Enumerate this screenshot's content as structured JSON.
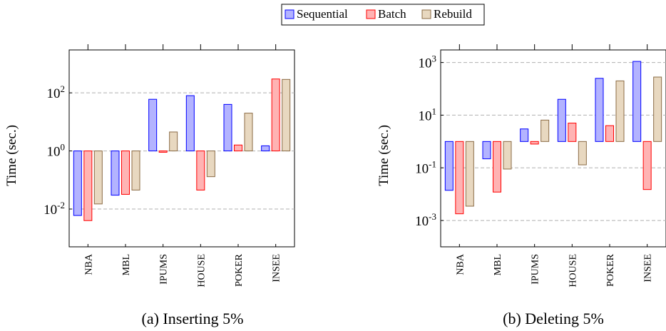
{
  "legend": {
    "items": [
      {
        "label": "Sequential",
        "fill": "#b3b3ff",
        "stroke": "#0000ff"
      },
      {
        "label": "Batch",
        "fill": "#ffb3b3",
        "stroke": "#ff0000"
      },
      {
        "label": "Rebuild",
        "fill": "#e8d8c0",
        "stroke": "#8b6b45"
      }
    ]
  },
  "chart_data": [
    {
      "type": "bar",
      "title": "",
      "caption": "(a) Inserting 5%",
      "ylabel": "Time (sec.)",
      "yscale": "log",
      "bar_base": 1,
      "ylim": [
        0.0005,
        3000
      ],
      "yticks": [
        0.01,
        1,
        100
      ],
      "ytick_labels": [
        "10^-2",
        "10^0",
        "10^2"
      ],
      "grid": "horizontal dashed at major ticks",
      "categories": [
        "NBA",
        "MBL",
        "IPUMS",
        "HOUSE",
        "POKER",
        "INSEE"
      ],
      "series": [
        {
          "name": "Sequential",
          "values": [
            0.006,
            0.03,
            60,
            80,
            40,
            1.5
          ]
        },
        {
          "name": "Batch",
          "values": [
            0.004,
            0.032,
            0.9,
            0.045,
            1.6,
            300
          ]
        },
        {
          "name": "Rebuild",
          "values": [
            0.015,
            0.045,
            4.5,
            0.13,
            20,
            290
          ]
        }
      ]
    },
    {
      "type": "bar",
      "title": "",
      "caption": "(b) Deleting 5%",
      "ylabel": "Time (sec.)",
      "yscale": "log",
      "bar_base": 1,
      "ylim": [
        0.0001,
        3000
      ],
      "yticks": [
        0.001,
        0.1,
        10,
        1000
      ],
      "ytick_labels": [
        "10^-3",
        "10^-1",
        "10^1",
        "10^3"
      ],
      "grid": "horizontal dashed at major ticks",
      "categories": [
        "NBA",
        "MBL",
        "IPUMS",
        "HOUSE",
        "POKER",
        "INSEE"
      ],
      "series": [
        {
          "name": "Sequential",
          "values": [
            0.014,
            0.22,
            3,
            40,
            250,
            1100
          ]
        },
        {
          "name": "Batch",
          "values": [
            0.0018,
            0.012,
            0.8,
            5,
            4,
            0.015
          ]
        },
        {
          "name": "Rebuild",
          "values": [
            0.0035,
            0.09,
            6.5,
            0.13,
            200,
            280
          ]
        }
      ]
    }
  ]
}
